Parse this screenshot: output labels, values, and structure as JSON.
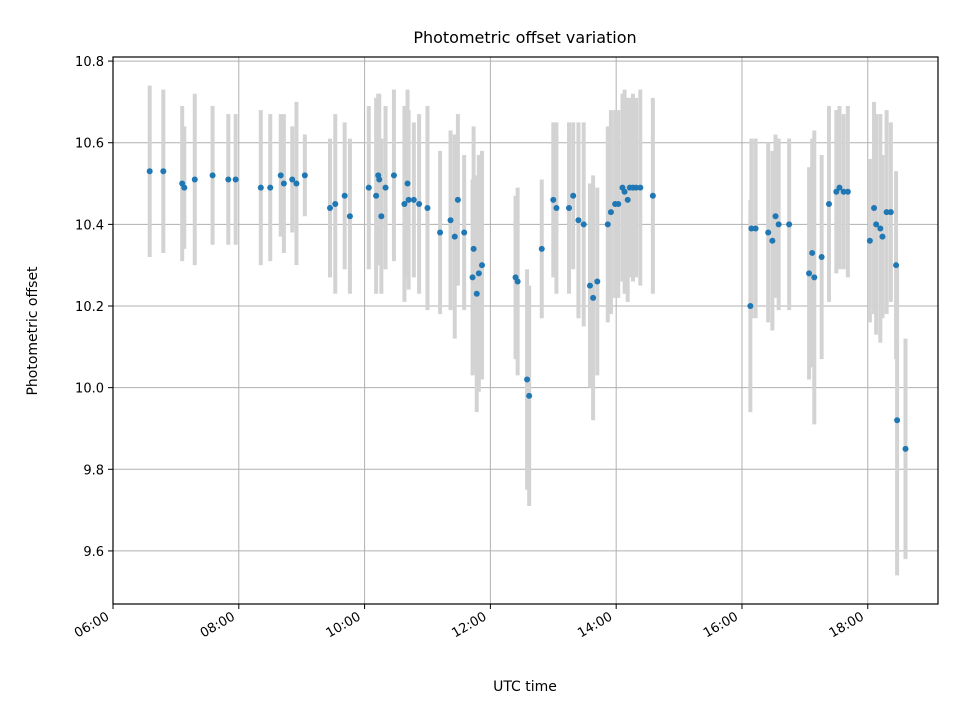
{
  "chart_data": {
    "type": "scatter",
    "title": "Photometric offset variation",
    "xlabel": "UTC time",
    "ylabel": "Photometric offset",
    "x_ticks": [
      "06:00",
      "08:00",
      "10:00",
      "12:00",
      "14:00",
      "16:00",
      "18:00"
    ],
    "y_ticks": [
      "9.6",
      "9.8",
      "10.0",
      "10.2",
      "10.4",
      "10.6",
      "10.8"
    ],
    "xlim": [
      "06:00",
      "19:07"
    ],
    "ylim": [
      9.47,
      10.81
    ],
    "grid": true,
    "marker_color": "#1f77b4",
    "errorbar_color": "#d3d3d3",
    "points": [
      [
        "06:35",
        10.53,
        0.21
      ],
      [
        "06:48",
        10.53,
        0.2
      ],
      [
        "07:06",
        10.5,
        0.19
      ],
      [
        "07:08",
        10.49,
        0.15
      ],
      [
        "07:18",
        10.51,
        0.21
      ],
      [
        "07:35",
        10.52,
        0.17
      ],
      [
        "07:50",
        10.51,
        0.16
      ],
      [
        "07:57",
        10.51,
        0.16
      ],
      [
        "08:21",
        10.49,
        0.19
      ],
      [
        "08:30",
        10.49,
        0.18
      ],
      [
        "08:40",
        10.52,
        0.15
      ],
      [
        "08:43",
        10.5,
        0.17
      ],
      [
        "08:51",
        10.51,
        0.13
      ],
      [
        "08:55",
        10.5,
        0.2
      ],
      [
        "09:03",
        10.52,
        0.1
      ],
      [
        "09:27",
        10.44,
        0.17
      ],
      [
        "09:32",
        10.45,
        0.22
      ],
      [
        "09:41",
        10.47,
        0.18
      ],
      [
        "09:46",
        10.42,
        0.19
      ],
      [
        "10:04",
        10.49,
        0.2
      ],
      [
        "10:11",
        10.47,
        0.24
      ],
      [
        "10:13",
        10.52,
        0.2
      ],
      [
        "10:14",
        10.51,
        0.21
      ],
      [
        "10:16",
        10.42,
        0.19
      ],
      [
        "10:20",
        10.49,
        0.2
      ],
      [
        "10:28",
        10.52,
        0.21
      ],
      [
        "10:38",
        10.45,
        0.24
      ],
      [
        "10:41",
        10.5,
        0.23
      ],
      [
        "10:42",
        10.46,
        0.22
      ],
      [
        "10:47",
        10.46,
        0.19
      ],
      [
        "10:52",
        10.45,
        0.22
      ],
      [
        "11:00",
        10.44,
        0.25
      ],
      [
        "11:12",
        10.38,
        0.2
      ],
      [
        "11:22",
        10.41,
        0.22
      ],
      [
        "11:26",
        10.37,
        0.25
      ],
      [
        "11:29",
        10.46,
        0.21
      ],
      [
        "11:35",
        10.38,
        0.19
      ],
      [
        "11:43",
        10.27,
        0.24
      ],
      [
        "11:44",
        10.34,
        0.3
      ],
      [
        "11:47",
        10.23,
        0.29
      ],
      [
        "11:49",
        10.28,
        0.29
      ],
      [
        "11:52",
        10.3,
        0.28
      ],
      [
        "12:24",
        10.27,
        0.2
      ],
      [
        "12:26",
        10.26,
        0.23
      ],
      [
        "12:35",
        10.02,
        0.27
      ],
      [
        "12:37",
        9.98,
        0.27
      ],
      [
        "12:49",
        10.34,
        0.17
      ],
      [
        "13:00",
        10.46,
        0.19
      ],
      [
        "13:03",
        10.44,
        0.21
      ],
      [
        "13:15",
        10.44,
        0.21
      ],
      [
        "13:19",
        10.47,
        0.18
      ],
      [
        "13:24",
        10.41,
        0.24
      ],
      [
        "13:29",
        10.4,
        0.25
      ],
      [
        "13:35",
        10.25,
        0.25
      ],
      [
        "13:38",
        10.22,
        0.3
      ],
      [
        "13:42",
        10.26,
        0.23
      ],
      [
        "13:52",
        10.4,
        0.24
      ],
      [
        "13:55",
        10.43,
        0.25
      ],
      [
        "13:59",
        10.45,
        0.23
      ],
      [
        "14:02",
        10.45,
        0.23
      ],
      [
        "14:06",
        10.49,
        0.23
      ],
      [
        "14:08",
        10.48,
        0.25
      ],
      [
        "14:11",
        10.46,
        0.25
      ],
      [
        "14:13",
        10.49,
        0.22
      ],
      [
        "14:16",
        10.49,
        0.23
      ],
      [
        "14:19",
        10.49,
        0.22
      ],
      [
        "14:23",
        10.49,
        0.24
      ],
      [
        "14:35",
        10.47,
        0.24
      ],
      [
        "16:08",
        10.2,
        0.26
      ],
      [
        "16:09",
        10.39,
        0.22
      ],
      [
        "16:13",
        10.39,
        0.22
      ],
      [
        "16:25",
        10.38,
        0.22
      ],
      [
        "16:29",
        10.36,
        0.22
      ],
      [
        "16:32",
        10.42,
        0.2
      ],
      [
        "16:35",
        10.4,
        0.21
      ],
      [
        "16:45",
        10.4,
        0.21
      ],
      [
        "17:04",
        10.28,
        0.26
      ],
      [
        "17:07",
        10.33,
        0.28
      ],
      [
        "17:09",
        10.27,
        0.36
      ],
      [
        "17:16",
        10.32,
        0.25
      ],
      [
        "17:23",
        10.45,
        0.24
      ],
      [
        "17:30",
        10.48,
        0.2
      ],
      [
        "17:33",
        10.49,
        0.2
      ],
      [
        "17:37",
        10.48,
        0.19
      ],
      [
        "17:41",
        10.48,
        0.21
      ],
      [
        "18:02",
        10.36,
        0.2
      ],
      [
        "18:06",
        10.44,
        0.26
      ],
      [
        "18:08",
        10.4,
        0.27
      ],
      [
        "18:12",
        10.39,
        0.28
      ],
      [
        "18:14",
        10.37,
        0.2
      ],
      [
        "18:18",
        10.43,
        0.25
      ],
      [
        "18:22",
        10.43,
        0.22
      ],
      [
        "18:27",
        10.3,
        0.23
      ],
      [
        "18:28",
        9.92,
        0.38
      ],
      [
        "18:36",
        9.85,
        0.27
      ]
    ]
  }
}
